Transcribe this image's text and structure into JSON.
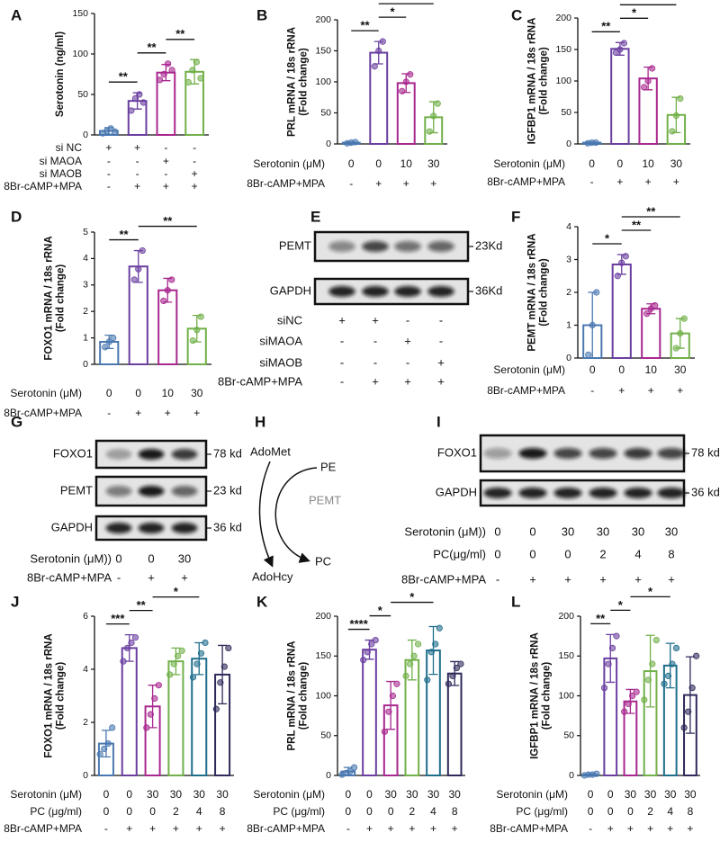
{
  "chart_data": [
    {
      "type": "bar",
      "panel": "A",
      "ylabel": [
        "Serotonin (ng/ml)"
      ],
      "ylim": [
        0,
        150
      ],
      "yticks": [
        0,
        50,
        100,
        150
      ],
      "categories": [
        null,
        null,
        null,
        null
      ],
      "colors": [
        "#4a78b0",
        "#6a3fa0",
        "#a8288f",
        "#72b04a"
      ],
      "values": [
        5,
        42,
        77,
        78
      ],
      "errors": [
        4,
        10,
        10,
        15
      ],
      "points": [
        [
          2,
          5,
          8,
          4
        ],
        [
          30,
          45,
          50,
          40
        ],
        [
          68,
          75,
          88,
          80
        ],
        [
          65,
          80,
          90,
          70
        ]
      ],
      "significance": [
        {
          "label": "**",
          "between": [
            0,
            1
          ]
        },
        {
          "label": "**",
          "between": [
            1,
            2
          ]
        },
        {
          "label": "**",
          "between": [
            2,
            3
          ]
        }
      ],
      "conditions": [
        {
          "label": "si NC",
          "entries": [
            "+",
            "+",
            "-",
            "-"
          ]
        },
        {
          "label": "si MAOA",
          "entries": [
            "-",
            "-",
            "+",
            "-"
          ]
        },
        {
          "label": "si MAOB",
          "entries": [
            "-",
            "-",
            "-",
            "+"
          ]
        },
        {
          "label": "8Br-cAMP+MPA",
          "entries": [
            "-",
            "+",
            "+",
            "+"
          ]
        }
      ]
    },
    {
      "type": "bar",
      "panel": "B",
      "ylabel": [
        "PRL mRNA / 18s rRNA",
        "(Fold change)"
      ],
      "ylim": [
        0,
        200
      ],
      "yticks": [
        0,
        50,
        100,
        150,
        200
      ],
      "categories": [
        null,
        null,
        null,
        null
      ],
      "colors": [
        "#4a78b0",
        "#6a3fa0",
        "#a8288f",
        "#72b04a"
      ],
      "values": [
        2,
        147,
        98,
        43
      ],
      "errors": [
        1,
        18,
        15,
        25
      ],
      "points": [
        [
          1,
          2,
          3
        ],
        [
          125,
          150,
          165
        ],
        [
          85,
          100,
          112
        ],
        [
          20,
          45,
          65
        ]
      ],
      "significance": [
        {
          "label": "**",
          "between": [
            0,
            1
          ]
        },
        {
          "label": "*",
          "between": [
            1,
            2
          ]
        },
        {
          "label": "**",
          "between": [
            1,
            3
          ]
        }
      ],
      "conditions": [
        {
          "label": "Serotonin (μM)",
          "entries": [
            "0",
            "0",
            "10",
            "30"
          ]
        },
        {
          "label": "8Br-cAMP+MPA",
          "entries": [
            "-",
            "+",
            "+",
            "+"
          ]
        }
      ]
    },
    {
      "type": "bar",
      "panel": "C",
      "ylabel": [
        "IGFBP1 mRNA / 18s rRNA",
        "(Fold change)"
      ],
      "ylim": [
        0,
        200
      ],
      "yticks": [
        0,
        50,
        100,
        150,
        200
      ],
      "categories": [
        null,
        null,
        null,
        null
      ],
      "colors": [
        "#4a78b0",
        "#6a3fa0",
        "#a8288f",
        "#72b04a"
      ],
      "values": [
        2,
        151,
        104,
        46
      ],
      "errors": [
        1,
        10,
        18,
        28
      ],
      "points": [
        [
          1,
          2,
          2
        ],
        [
          145,
          150,
          160
        ],
        [
          90,
          100,
          120
        ],
        [
          20,
          45,
          72
        ]
      ],
      "significance": [
        {
          "label": "**",
          "between": [
            0,
            1
          ]
        },
        {
          "label": "*",
          "between": [
            1,
            2
          ]
        },
        {
          "label": "**",
          "between": [
            1,
            3
          ]
        }
      ],
      "conditions": [
        {
          "label": "Serotonin (μM)",
          "entries": [
            "0",
            "0",
            "10",
            "30"
          ]
        },
        {
          "label": "8Br-cAMP+MPA",
          "entries": [
            "-",
            "+",
            "+",
            "+"
          ]
        }
      ]
    },
    {
      "type": "bar",
      "panel": "D",
      "ylabel": [
        "FOXO1 mRNA / 18s rRNA",
        "(Fold change)"
      ],
      "ylim": [
        0,
        5
      ],
      "yticks": [
        0,
        1,
        2,
        3,
        4,
        5
      ],
      "categories": [
        null,
        null,
        null,
        null
      ],
      "colors": [
        "#4a78b0",
        "#6a3fa0",
        "#a8288f",
        "#72b04a"
      ],
      "values": [
        0.85,
        3.7,
        2.8,
        1.35
      ],
      "errors": [
        0.25,
        0.6,
        0.45,
        0.5
      ],
      "points": [
        [
          0.65,
          0.85,
          1.0
        ],
        [
          3.2,
          3.6,
          4.3
        ],
        [
          2.4,
          2.8,
          3.2
        ],
        [
          0.9,
          1.3,
          1.8
        ]
      ],
      "significance": [
        {
          "label": "**",
          "between": [
            0,
            1
          ]
        },
        {
          "label": "**",
          "between": [
            1,
            3
          ]
        }
      ],
      "conditions": [
        {
          "label": "Serotonin (μM)",
          "entries": [
            "0",
            "0",
            "10",
            "30"
          ]
        },
        {
          "label": "8Br-cAMP+MPA",
          "entries": [
            "-",
            "+",
            "+",
            "+"
          ]
        }
      ]
    },
    {
      "type": "bar",
      "panel": "F",
      "ylabel": [
        "PEMT mRNA / 18s rRNA",
        "(Fold change)"
      ],
      "ylim": [
        0,
        4
      ],
      "yticks": [
        0,
        1,
        2,
        3,
        4
      ],
      "categories": [
        null,
        null,
        null,
        null
      ],
      "colors": [
        "#4a78b0",
        "#6a3fa0",
        "#a8288f",
        "#72b04a"
      ],
      "values": [
        1.0,
        2.85,
        1.5,
        0.75
      ],
      "errors": [
        1.0,
        0.3,
        0.15,
        0.45
      ],
      "points": [
        [
          0.1,
          1.0,
          2.0
        ],
        [
          2.5,
          2.9,
          3.1
        ],
        [
          1.35,
          1.5,
          1.6
        ],
        [
          0.3,
          0.75,
          1.2
        ]
      ],
      "significance": [
        {
          "label": "*",
          "between": [
            0,
            1
          ]
        },
        {
          "label": "**",
          "between": [
            1,
            2
          ]
        },
        {
          "label": "**",
          "between": [
            1,
            3
          ]
        }
      ],
      "conditions": [
        {
          "label": "Serotonin (μM)",
          "entries": [
            "0",
            "0",
            "10",
            "30"
          ]
        },
        {
          "label": "8Br-cAMP+MPA",
          "entries": [
            "-",
            "+",
            "+",
            "+"
          ]
        }
      ]
    },
    {
      "type": "bar",
      "panel": "J",
      "ylabel": [
        "FOXO1 mRNA / 18s rRNA",
        "(Fold change)"
      ],
      "ylim": [
        0,
        6
      ],
      "yticks": [
        0,
        2,
        4,
        6
      ],
      "categories": [
        null,
        null,
        null,
        null,
        null,
        null
      ],
      "colors": [
        "#4a78b0",
        "#6a3fa0",
        "#a8288f",
        "#72b04a",
        "#1f6e8c",
        "#2d2a5a"
      ],
      "values": [
        1.2,
        4.8,
        2.6,
        4.3,
        4.4,
        3.8
      ],
      "errors": [
        0.5,
        0.5,
        0.8,
        0.5,
        0.6,
        1.1
      ],
      "points": [
        [
          0.8,
          1.0,
          1.2,
          1.8
        ],
        [
          4.3,
          4.8,
          5.0,
          5.2
        ],
        [
          1.8,
          2.3,
          2.9,
          3.4
        ],
        [
          3.8,
          4.2,
          4.5,
          4.7
        ],
        [
          3.7,
          4.2,
          4.6,
          5.0
        ],
        [
          2.5,
          3.5,
          4.1,
          4.8
        ]
      ],
      "significance": [
        {
          "label": "***",
          "between": [
            0,
            1
          ]
        },
        {
          "label": "**",
          "between": [
            1,
            2
          ]
        },
        {
          "label": "*",
          "between": [
            2,
            4
          ]
        }
      ],
      "conditions": [
        {
          "label": "Serotonin (μM)",
          "entries": [
            "0",
            "0",
            "30",
            "30",
            "30",
            "30"
          ]
        },
        {
          "label": "PC (μg/ml)",
          "entries": [
            "0",
            "0",
            "0",
            "2",
            "4",
            "8"
          ]
        },
        {
          "label": "8Br-cAMP+MPA",
          "entries": [
            "-",
            "+",
            "+",
            "+",
            "+",
            "+"
          ]
        }
      ]
    },
    {
      "type": "bar",
      "panel": "K",
      "ylabel": [
        "PRL mRNA / 18s rRNA",
        "(Fold change)"
      ],
      "ylim": [
        0,
        200
      ],
      "yticks": [
        0,
        50,
        100,
        150,
        200
      ],
      "categories": [
        null,
        null,
        null,
        null,
        null,
        null
      ],
      "colors": [
        "#4a78b0",
        "#6a3fa0",
        "#a8288f",
        "#72b04a",
        "#1f6e8c",
        "#2d2a5a"
      ],
      "values": [
        5,
        158,
        88,
        145,
        157,
        128
      ],
      "errors": [
        5,
        12,
        30,
        25,
        30,
        15
      ],
      "points": [
        [
          1,
          3,
          5,
          10
        ],
        [
          145,
          155,
          165,
          170
        ],
        [
          55,
          80,
          100,
          115
        ],
        [
          125,
          140,
          150,
          165
        ],
        [
          120,
          155,
          165,
          185
        ],
        [
          115,
          125,
          135,
          140
        ]
      ],
      "significance": [
        {
          "label": "****",
          "between": [
            0,
            1
          ]
        },
        {
          "label": "*",
          "between": [
            1,
            2
          ]
        },
        {
          "label": "*",
          "between": [
            2,
            4
          ]
        }
      ],
      "conditions": [
        {
          "label": "Serotonin (μM)",
          "entries": [
            "0",
            "0",
            "30",
            "30",
            "30",
            "30"
          ]
        },
        {
          "label": "PC (μg/ml)",
          "entries": [
            "0",
            "0",
            "0",
            "2",
            "4",
            "8"
          ]
        },
        {
          "label": "8Br-cAMP+MPA",
          "entries": [
            "-",
            "+",
            "+",
            "+",
            "+",
            "+"
          ]
        }
      ]
    },
    {
      "type": "bar",
      "panel": "L",
      "ylabel": [
        "IGFBP1 mRNA / 18s rRNA",
        "(Fold change)"
      ],
      "ylim": [
        0,
        200
      ],
      "yticks": [
        0,
        50,
        100,
        150,
        200
      ],
      "categories": [
        null,
        null,
        null,
        null,
        null,
        null
      ],
      "colors": [
        "#4a78b0",
        "#6a3fa0",
        "#a8288f",
        "#72b04a",
        "#1f6e8c",
        "#2d2a5a"
      ],
      "values": [
        1,
        147,
        93,
        131,
        138,
        101
      ],
      "errors": [
        1,
        30,
        15,
        45,
        28,
        48
      ],
      "points": [
        [
          0,
          1,
          1,
          2
        ],
        [
          110,
          140,
          160,
          175
        ],
        [
          80,
          90,
          100,
          105
        ],
        [
          95,
          120,
          140,
          170
        ],
        [
          115,
          125,
          140,
          160
        ],
        [
          60,
          80,
          110,
          150
        ]
      ],
      "significance": [
        {
          "label": "**",
          "between": [
            0,
            1
          ]
        },
        {
          "label": "*",
          "between": [
            1,
            2
          ]
        },
        {
          "label": "*",
          "between": [
            2,
            4
          ]
        }
      ],
      "conditions": [
        {
          "label": "Serotonin (μM)",
          "entries": [
            "0",
            "0",
            "30",
            "30",
            "30",
            "30"
          ]
        },
        {
          "label": "PC (μg/ml)",
          "entries": [
            "0",
            "0",
            "0",
            "2",
            "4",
            "8"
          ]
        },
        {
          "label": "8Br-cAMP+MPA",
          "entries": [
            "-",
            "+",
            "+",
            "+",
            "+",
            "+"
          ]
        }
      ]
    }
  ],
  "blots": [
    {
      "panel": "E",
      "bands": [
        {
          "label": "PEMT",
          "size": "23Kd"
        },
        {
          "label": "GAPDH",
          "size": "36Kd"
        }
      ],
      "conditions": [
        {
          "label": "siNC",
          "entries": [
            "+",
            "+",
            "-",
            "-"
          ]
        },
        {
          "label": "siMAOA",
          "entries": [
            "-",
            "-",
            "+",
            "-"
          ]
        },
        {
          "label": "siMAOB",
          "entries": [
            "-",
            "-",
            "-",
            "+"
          ]
        },
        {
          "label": "8Br-cAMP+MPA",
          "entries": [
            "-",
            "+",
            "+",
            "+"
          ]
        }
      ]
    },
    {
      "panel": "G",
      "bands": [
        {
          "label": "FOXO1",
          "size": "78 kd"
        },
        {
          "label": "PEMT",
          "size": "23 kd"
        },
        {
          "label": "GAPDH",
          "size": "36 kd"
        }
      ],
      "conditions": [
        {
          "label": "Serotonin (μM))",
          "entries": [
            "0",
            "0",
            "30"
          ]
        },
        {
          "label": "8Br-cAMP+MPA",
          "entries": [
            "-",
            "+",
            "+"
          ]
        }
      ]
    },
    {
      "panel": "I",
      "bands": [
        {
          "label": "FOXO1",
          "size": "78 kd"
        },
        {
          "label": "GAPDH",
          "size": "36 kd"
        }
      ],
      "conditions": [
        {
          "label": "Serotonin (μM))",
          "entries": [
            "0",
            "0",
            "30",
            "30",
            "30",
            "30"
          ]
        },
        {
          "label": "PC(μg/ml)",
          "entries": [
            "0",
            "0",
            "0",
            "2",
            "4",
            "8"
          ]
        },
        {
          "label": "8Br-cAMP+MPA",
          "entries": [
            "-",
            "+",
            "+",
            "+",
            "+",
            "+"
          ]
        }
      ]
    }
  ],
  "diagram": {
    "panel": "H",
    "substrate": "AdoMet",
    "product": "AdoHcy",
    "enzyme": "PEMT",
    "input": "PE",
    "output": "PC"
  }
}
